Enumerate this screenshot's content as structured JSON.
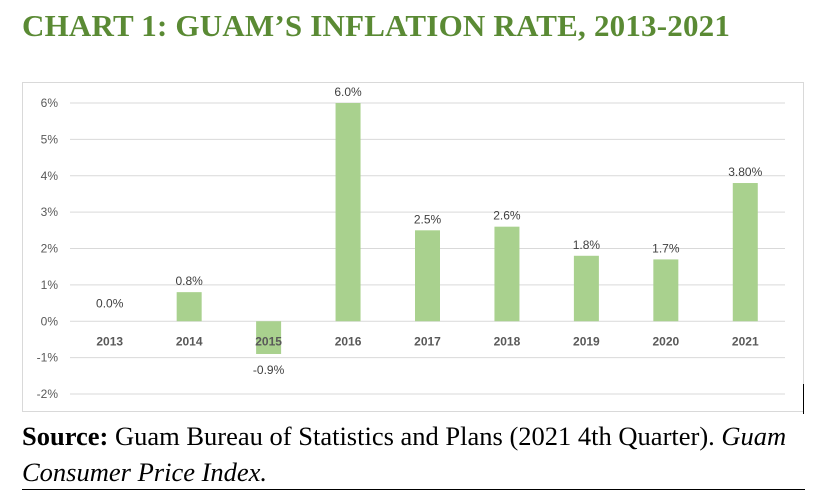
{
  "title": "CHART 1: GUAM’S INFLATION RATE, 2013-2021",
  "source": {
    "label": "Source:",
    "text_plain": " Guam Bureau of Statistics and Plans (2021 4th Quarter). ",
    "text_italic": "Guam Consumer Price Index."
  },
  "colors": {
    "title": "#5a8a34",
    "bar": "#a9d18e",
    "grid": "#d9d9d9"
  },
  "chart_data": {
    "type": "bar",
    "title": "",
    "xlabel": "",
    "ylabel": "",
    "categories": [
      "2013",
      "2014",
      "2015",
      "2016",
      "2017",
      "2018",
      "2019",
      "2020",
      "2021"
    ],
    "values": [
      0.0,
      0.8,
      -0.9,
      6.0,
      2.5,
      2.6,
      1.8,
      1.7,
      3.8
    ],
    "data_labels": [
      "0.0%",
      "0.8%",
      "-0.9%",
      "6.0%",
      "2.5%",
      "2.6%",
      "1.8%",
      "1.7%",
      "3.80%"
    ],
    "ylim": [
      -2,
      6
    ],
    "yticks": [
      "-2%",
      "-1%",
      "0%",
      "1%",
      "2%",
      "3%",
      "4%",
      "5%",
      "6%"
    ],
    "grid": true,
    "legend": "none"
  }
}
